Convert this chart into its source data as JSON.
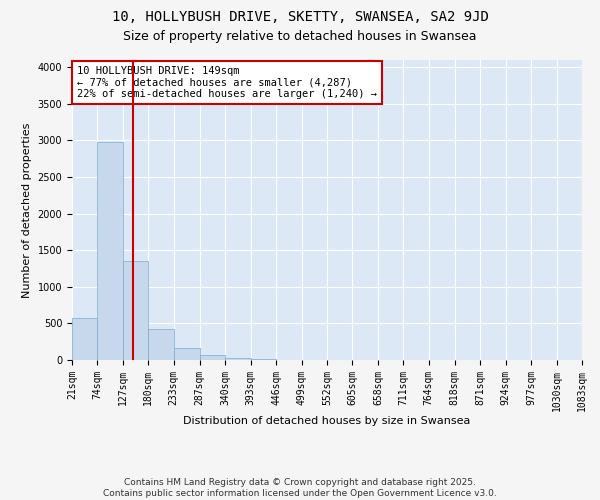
{
  "title1": "10, HOLLYBUSH DRIVE, SKETTY, SWANSEA, SA2 9JD",
  "title2": "Size of property relative to detached houses in Swansea",
  "xlabel": "Distribution of detached houses by size in Swansea",
  "ylabel": "Number of detached properties",
  "bar_color": "#c8d8ec",
  "bar_edge_color": "#7aaad0",
  "bins": [
    21,
    74,
    127,
    180,
    233,
    287,
    340,
    393,
    446,
    499,
    552,
    605,
    658,
    711,
    764,
    818,
    871,
    924,
    977,
    1030,
    1083
  ],
  "bin_labels": [
    "21sqm",
    "74sqm",
    "127sqm",
    "180sqm",
    "233sqm",
    "287sqm",
    "340sqm",
    "393sqm",
    "446sqm",
    "499sqm",
    "552sqm",
    "605sqm",
    "658sqm",
    "711sqm",
    "764sqm",
    "818sqm",
    "871sqm",
    "924sqm",
    "977sqm",
    "1030sqm",
    "1083sqm"
  ],
  "counts": [
    580,
    2980,
    1350,
    430,
    160,
    75,
    30,
    10,
    5,
    2,
    1,
    1,
    0,
    0,
    0,
    0,
    0,
    0,
    0,
    0
  ],
  "vline_x": 149,
  "vline_color": "#cc0000",
  "ylim": [
    0,
    4100
  ],
  "annotation_text": "10 HOLLYBUSH DRIVE: 149sqm\n← 77% of detached houses are smaller (4,287)\n22% of semi-detached houses are larger (1,240) →",
  "annotation_box_color": "#ffffff",
  "annotation_box_edge_color": "#cc0000",
  "footer_text": "Contains HM Land Registry data © Crown copyright and database right 2025.\nContains public sector information licensed under the Open Government Licence v3.0.",
  "bg_color": "#dce8f5",
  "grid_color": "#ffffff",
  "fig_bg_color": "#f5f5f5",
  "title1_fontsize": 10,
  "title2_fontsize": 9,
  "axis_label_fontsize": 8,
  "tick_fontsize": 7,
  "annotation_fontsize": 7.5,
  "footer_fontsize": 6.5,
  "yticks": [
    0,
    500,
    1000,
    1500,
    2000,
    2500,
    3000,
    3500,
    4000
  ]
}
